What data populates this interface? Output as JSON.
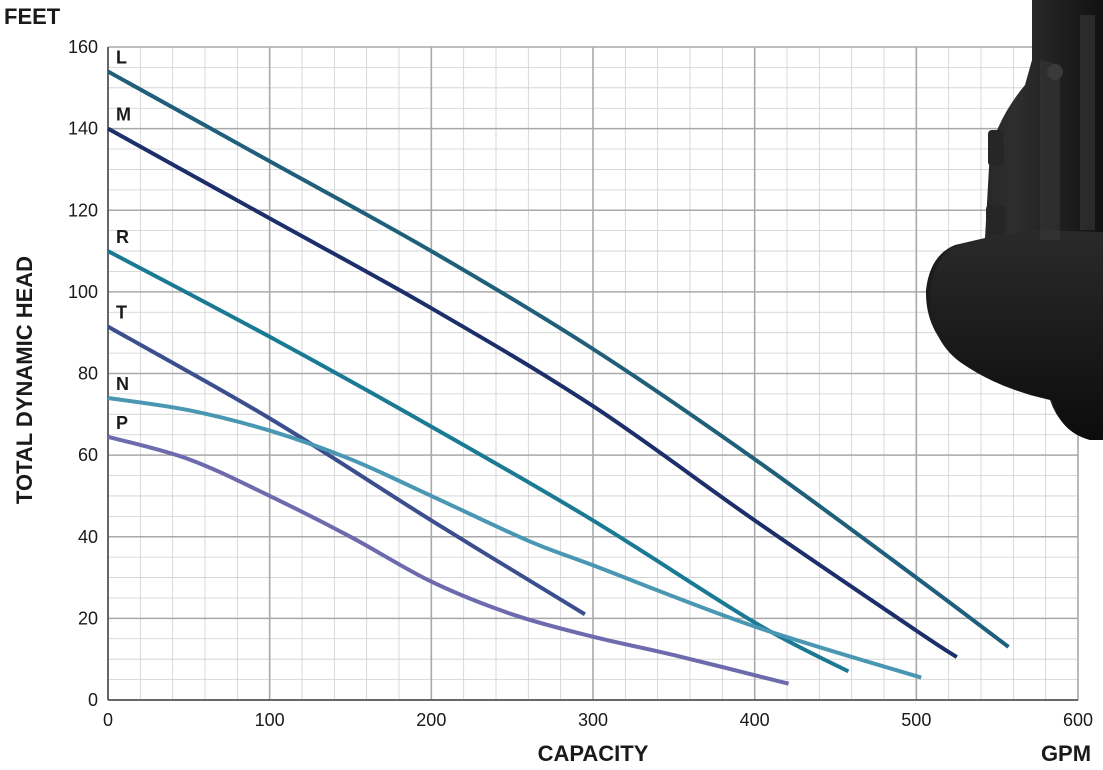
{
  "chart_data": {
    "type": "line",
    "ylabel": "TOTAL DYNAMIC HEAD",
    "y_unit": "FEET",
    "xlabel": "CAPACITY",
    "x_unit": "GPM",
    "xlim": [
      0,
      600
    ],
    "ylim": [
      0,
      160
    ],
    "x_ticks": [
      "0",
      "100",
      "200",
      "300",
      "400",
      "500",
      "600"
    ],
    "y_ticks": [
      "0",
      "20",
      "40",
      "60",
      "80",
      "100",
      "120",
      "140",
      "160"
    ],
    "grid": true,
    "series": [
      {
        "name": "L",
        "color": "#1f5f7a",
        "points": [
          [
            0,
            154
          ],
          [
            100,
            132
          ],
          [
            200,
            110
          ],
          [
            300,
            86
          ],
          [
            400,
            59
          ],
          [
            500,
            30
          ],
          [
            557,
            13
          ]
        ]
      },
      {
        "name": "M",
        "color": "#1c2f6b",
        "points": [
          [
            0,
            140
          ],
          [
            100,
            118
          ],
          [
            200,
            96
          ],
          [
            300,
            72
          ],
          [
            400,
            44
          ],
          [
            500,
            17
          ],
          [
            525,
            10.5
          ]
        ]
      },
      {
        "name": "R",
        "color": "#1a7a94",
        "points": [
          [
            0,
            110
          ],
          [
            100,
            89
          ],
          [
            200,
            67
          ],
          [
            300,
            44
          ],
          [
            400,
            19
          ],
          [
            458,
            7
          ]
        ]
      },
      {
        "name": "T",
        "color": "#3b4e8e",
        "points": [
          [
            0,
            91.5
          ],
          [
            100,
            69
          ],
          [
            200,
            44
          ],
          [
            295,
            21
          ]
        ]
      },
      {
        "name": "N",
        "color": "#4a97b3",
        "points": [
          [
            0,
            74
          ],
          [
            50,
            71
          ],
          [
            100,
            66
          ],
          [
            150,
            59
          ],
          [
            200,
            50
          ],
          [
            260,
            39
          ],
          [
            300,
            33
          ],
          [
            400,
            18
          ],
          [
            503,
            5.5
          ]
        ]
      },
      {
        "name": "P",
        "color": "#6d6aad",
        "points": [
          [
            0,
            64.5
          ],
          [
            50,
            59
          ],
          [
            100,
            50
          ],
          [
            150,
            40
          ],
          [
            200,
            29
          ],
          [
            250,
            21
          ],
          [
            300,
            15.5
          ],
          [
            350,
            11
          ],
          [
            421,
            4
          ]
        ]
      }
    ]
  },
  "image": {
    "subject": "pump-photo"
  }
}
